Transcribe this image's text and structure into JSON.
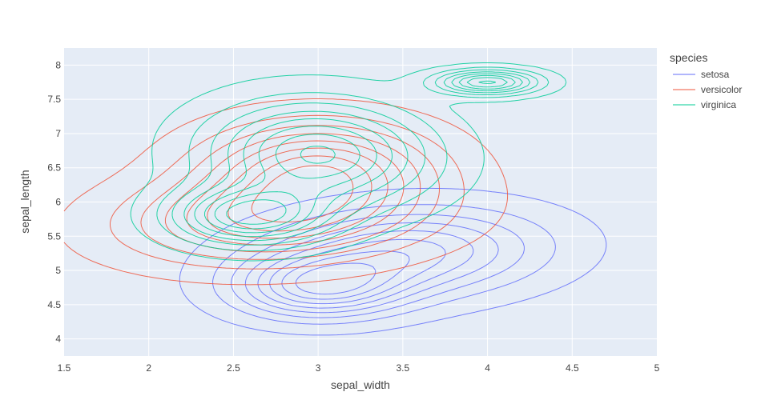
{
  "chart_data": {
    "type": "contour",
    "title": "",
    "xlabel": "sepal_width",
    "ylabel": "sepal_length",
    "xlim": [
      1.5,
      5
    ],
    "ylim": [
      3.75,
      8.25
    ],
    "xticks": [
      1.5,
      2,
      2.5,
      3,
      3.5,
      4,
      4.5,
      5
    ],
    "yticks": [
      4,
      4.5,
      5,
      5.5,
      6,
      6.5,
      7,
      7.5,
      8
    ],
    "grid": true,
    "plot_background": "#e5ecf6",
    "legend": {
      "title": "species",
      "position": "right"
    },
    "series": [
      {
        "name": "setosa",
        "color": "#636efa",
        "components": [
          {
            "peak": [
              3.5,
              5.25
            ],
            "rx": 0.55,
            "ry": 0.42,
            "tilt": 0.25
          },
          {
            "peak": [
              3.0,
              4.75
            ],
            "rx": 0.33,
            "ry": 0.3,
            "tilt": 0.1
          }
        ],
        "extent": {
          "x": [
            2.5,
            4.3
          ],
          "y": [
            4.0,
            5.9
          ]
        }
      },
      {
        "name": "versicolor",
        "color": "#ef553b",
        "components": [
          {
            "peak": [
              2.75,
              5.75
            ],
            "rx": 0.58,
            "ry": 0.42,
            "tilt": 0.2
          },
          {
            "peak": [
              3.0,
              6.5
            ],
            "rx": 0.45,
            "ry": 0.45,
            "tilt": 0.3
          }
        ],
        "extent": {
          "x": [
            1.75,
            3.75
          ],
          "y": [
            4.75,
            7.25
          ]
        }
      },
      {
        "name": "virginica",
        "color": "#00cc96",
        "components": [
          {
            "peak": [
              3.0,
              6.7
            ],
            "rx": 0.42,
            "ry": 0.5,
            "tilt": 0.15
          },
          {
            "peak": [
              2.6,
              5.8
            ],
            "rx": 0.3,
            "ry": 0.28,
            "tilt": 0.0
          },
          {
            "peak": [
              4.0,
              7.75
            ],
            "rx": 0.2,
            "ry": 0.12,
            "tilt": 0.0
          }
        ],
        "extent": {
          "x": [
            2.1,
            4.25
          ],
          "y": [
            5.4,
            8.1
          ]
        }
      }
    ]
  }
}
